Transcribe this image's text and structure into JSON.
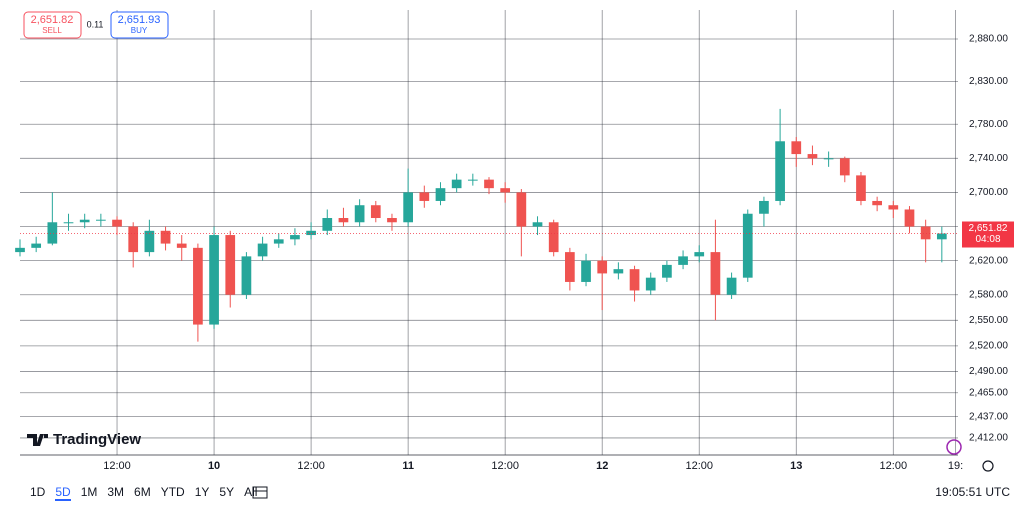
{
  "chart_data": {
    "type": "candlestick",
    "x": [
      0,
      2,
      4,
      6,
      8,
      10,
      12,
      14,
      16,
      18,
      20,
      22,
      24,
      26,
      28,
      30,
      32,
      34,
      36,
      38,
      40,
      42,
      44,
      46,
      48,
      50,
      52,
      54,
      56,
      58,
      60,
      62,
      64,
      66,
      68,
      70,
      72,
      74,
      76,
      78,
      80,
      82,
      84,
      86,
      88,
      90,
      92,
      94,
      96,
      98,
      100,
      102,
      104,
      106,
      108,
      110,
      112,
      114
    ],
    "open": [
      2630,
      2635,
      2640,
      2665,
      2665,
      2668,
      2668,
      2660,
      2630,
      2655,
      2640,
      2635,
      2545,
      2650,
      2580,
      2625,
      2640,
      2645,
      2650,
      2655,
      2670,
      2665,
      2685,
      2670,
      2665,
      2700,
      2690,
      2705,
      2715,
      2715,
      2705,
      2700,
      2660,
      2665,
      2630,
      2595,
      2620,
      2605,
      2610,
      2585,
      2600,
      2615,
      2625,
      2630,
      2580,
      2600,
      2675,
      2690,
      2760,
      2745,
      2740,
      2740,
      2720,
      2690,
      2685,
      2680,
      2660,
      2645
    ],
    "high": [
      2645,
      2648,
      2700,
      2675,
      2675,
      2675,
      2672,
      2665,
      2668,
      2660,
      2650,
      2640,
      2660,
      2655,
      2630,
      2648,
      2652,
      2658,
      2665,
      2680,
      2682,
      2692,
      2690,
      2675,
      2728,
      2708,
      2712,
      2722,
      2722,
      2718,
      2712,
      2704,
      2672,
      2668,
      2635,
      2628,
      2625,
      2618,
      2614,
      2606,
      2620,
      2632,
      2638,
      2668,
      2606,
      2680,
      2695,
      2798,
      2765,
      2755,
      2748,
      2742,
      2724,
      2695,
      2690,
      2684,
      2668,
      2660
    ],
    "low": [
      2625,
      2630,
      2638,
      2655,
      2658,
      2660,
      2650,
      2612,
      2625,
      2632,
      2620,
      2525,
      2540,
      2565,
      2575,
      2620,
      2635,
      2638,
      2645,
      2650,
      2660,
      2660,
      2665,
      2655,
      2660,
      2682,
      2685,
      2700,
      2708,
      2698,
      2688,
      2625,
      2650,
      2625,
      2585,
      2590,
      2562,
      2598,
      2572,
      2580,
      2595,
      2610,
      2618,
      2550,
      2575,
      2595,
      2660,
      2685,
      2730,
      2732,
      2730,
      2712,
      2685,
      2678,
      2670,
      2652,
      2618,
      2618
    ],
    "close": [
      2635,
      2640,
      2665,
      2665,
      2668,
      2668,
      2660,
      2630,
      2655,
      2640,
      2635,
      2545,
      2650,
      2580,
      2625,
      2640,
      2645,
      2650,
      2655,
      2670,
      2665,
      2685,
      2670,
      2665,
      2700,
      2690,
      2705,
      2715,
      2715,
      2705,
      2700,
      2660,
      2665,
      2630,
      2595,
      2620,
      2605,
      2610,
      2585,
      2600,
      2615,
      2625,
      2630,
      2580,
      2600,
      2675,
      2690,
      2760,
      2745,
      2740,
      2740,
      2720,
      2690,
      2685,
      2680,
      2660,
      2645,
      2651.82
    ],
    "up_color": "#26a69a",
    "down_color": "#ef5350",
    "xlim": [
      0,
      116
    ],
    "xticks": [
      {
        "value": 12,
        "label": "12:00"
      },
      {
        "value": 24,
        "label": "10"
      },
      {
        "value": 36,
        "label": "12:00"
      },
      {
        "value": 48,
        "label": "11"
      },
      {
        "value": 60,
        "label": "12:00"
      },
      {
        "value": 72,
        "label": "12"
      },
      {
        "value": 84,
        "label": "12:00"
      },
      {
        "value": 96,
        "label": "13"
      },
      {
        "value": 108,
        "label": "12:00"
      },
      {
        "value": 115.7,
        "label": "19:"
      }
    ],
    "ylim": [
      2392,
      2914
    ],
    "yticks": [
      {
        "value": 2880,
        "label": "2,880.00"
      },
      {
        "value": 2830,
        "label": "2,830.00"
      },
      {
        "value": 2780,
        "label": "2,780.00"
      },
      {
        "value": 2740,
        "label": "2,740.00"
      },
      {
        "value": 2700,
        "label": "2,700.00"
      },
      {
        "value": 2660,
        "label": "2,660.00"
      },
      {
        "value": 2620,
        "label": "2,620.00"
      },
      {
        "value": 2580,
        "label": "2,580.00"
      },
      {
        "value": 2550,
        "label": "2,550.00"
      },
      {
        "value": 2520,
        "label": "2,520.00"
      },
      {
        "value": 2490,
        "label": "2,490.00"
      },
      {
        "value": 2465,
        "label": "2,465.00"
      },
      {
        "value": 2437,
        "label": "2,437.00"
      },
      {
        "value": 2412,
        "label": "2,412.00"
      }
    ],
    "grid": true,
    "last_price": {
      "value": 2651.82,
      "label": "2,651.82",
      "countdown": "04:08",
      "color": "#f23645"
    }
  },
  "ui": {
    "sell_price": "2,651.82",
    "sell_label": "SELL",
    "spread": "0.11",
    "buy_price": "2,651.93",
    "buy_label": "BUY",
    "logo": "TradingView",
    "ranges": [
      "1D",
      "5D",
      "1M",
      "3M",
      "6M",
      "YTD",
      "1Y",
      "5Y",
      "All"
    ],
    "selected_range": "5D",
    "clock": "19:05:51 UTC"
  }
}
